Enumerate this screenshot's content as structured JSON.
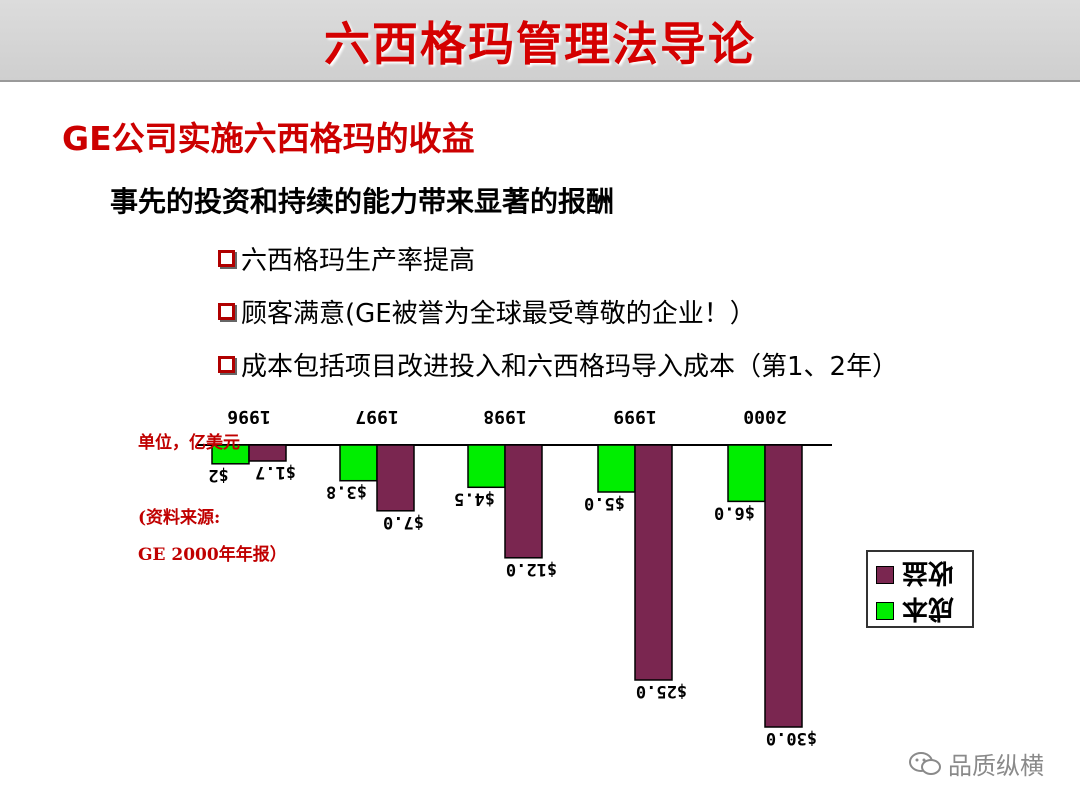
{
  "header": {
    "title": "六西格玛管理法导论"
  },
  "content": {
    "heading": "GE公司实施六西格玛的收益",
    "subheading": "事先的投资和持续的能力带来显著的报酬",
    "bullets": [
      "六西格玛生产率提高",
      "顾客满意(GE被誉为全球最受尊敬的企业！）",
      "成本包括项目改进投入和六西格玛导入成本（第1、2年）"
    ]
  },
  "notes": {
    "unit": "单位，亿美元",
    "source_line1": "(资料来源:",
    "source_line2": "GE 2000年年报）"
  },
  "legend": {
    "items": [
      "收益",
      "成本"
    ]
  },
  "watermark": {
    "text": "品质纵横"
  },
  "chart_data": {
    "type": "bar",
    "orientation": "rendered upside-down (rotated 180°)",
    "categories": [
      "1996",
      "1997",
      "1998",
      "1999",
      "2000"
    ],
    "series": [
      {
        "name": "成本",
        "values": [
          2,
          3.8,
          4.5,
          5.0,
          6.0
        ],
        "labels": [
          "$2",
          "$3.8",
          "$4.5",
          "$5.0",
          "$6.0"
        ],
        "color": "#00ee00"
      },
      {
        "name": "收益",
        "values": [
          1.7,
          7.0,
          12.0,
          25.0,
          30.0
        ],
        "labels": [
          "$1.7",
          "$7.0",
          "$12.0",
          "$25.0",
          "$30.0"
        ],
        "color": "#7a2650"
      }
    ],
    "ylim": [
      0,
      30
    ],
    "grid": false,
    "legend_position": "right"
  }
}
